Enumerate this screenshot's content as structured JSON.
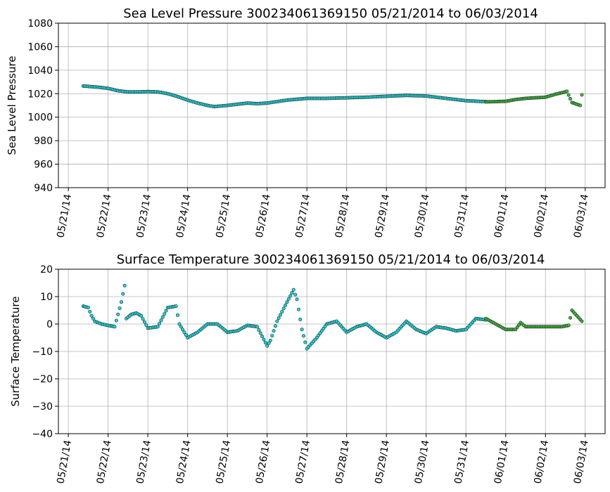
{
  "chart_data": [
    {
      "type": "scatter",
      "title": "Sea Level Pressure 300234061369150  05/21/2014 to 06/03/2014",
      "xlabel": "",
      "ylabel": "Sea Level Pressure",
      "ylim": [
        940,
        1080
      ],
      "yticks": [
        "940",
        "960",
        "980",
        "1000",
        "1020",
        "1040",
        "1060",
        "1080"
      ],
      "xlim": [
        "2014-05-20T18:00",
        "2014-06-03T12:00"
      ],
      "xticks": [
        "05/21/14",
        "05/22/14",
        "05/23/14",
        "05/24/14",
        "05/25/14",
        "05/26/14",
        "05/27/14",
        "05/28/14",
        "05/29/14",
        "05/30/14",
        "05/31/14",
        "06/01/14",
        "06/02/14",
        "06/03/14"
      ],
      "grid": true,
      "colors": {
        "cyan": "#1ed6dc",
        "green": "#3cb83c",
        "edge": "#222222"
      },
      "series": [
        {
          "color": "cyan",
          "x": [
            "2014-05-21T09:00",
            "2014-05-21T18:00",
            "2014-05-22T00:00",
            "2014-05-22T06:00",
            "2014-05-22T12:00",
            "2014-05-22T18:00",
            "2014-05-23T00:00",
            "2014-05-23T06:00",
            "2014-05-23T12:00",
            "2014-05-23T18:00",
            "2014-05-24T00:00",
            "2014-05-24T06:00",
            "2014-05-24T12:00",
            "2014-05-24T16:00",
            "2014-05-25T00:00",
            "2014-05-25T06:00",
            "2014-05-25T12:00",
            "2014-05-25T18:00",
            "2014-05-26T00:00",
            "2014-05-26T12:00",
            "2014-05-27T00:00",
            "2014-05-27T12:00",
            "2014-05-28T00:00",
            "2014-05-28T12:00",
            "2014-05-29T00:00",
            "2014-05-29T12:00",
            "2014-05-30T00:00",
            "2014-05-30T12:00",
            "2014-05-31T00:00",
            "2014-05-31T12:00"
          ],
          "y": [
            1026.5,
            1025.5,
            1024.5,
            1022.5,
            1021.5,
            1021.5,
            1021.8,
            1021.5,
            1020,
            1017.5,
            1014.5,
            1012,
            1010,
            1009,
            1010,
            1011,
            1012,
            1011.5,
            1012,
            1014.5,
            1016,
            1016,
            1016.5,
            1017,
            1017.8,
            1018.5,
            1018,
            1016,
            1014,
            1013.2
          ]
        },
        {
          "color": "green",
          "x": [
            "2014-05-31T12:00",
            "2014-06-01T00:00",
            "2014-06-01T06:00",
            "2014-06-01T12:00",
            "2014-06-01T18:00",
            "2014-06-02T00:00",
            "2014-06-02T06:00",
            "2014-06-02T12:00",
            "2014-06-02T13:00",
            "2014-06-02T16:00",
            "2014-06-02T19:00",
            "2014-06-02T21:00",
            "2014-06-02T22:00"
          ],
          "y": [
            1013,
            1013.5,
            1015,
            1016,
            1016.5,
            1017,
            1019.5,
            1021.5,
            1022,
            1012.5,
            1011,
            1010,
            1019
          ]
        }
      ]
    },
    {
      "type": "scatter",
      "title": "Surface Temperature 300234061369150  05/21/2014 to 06/03/2014",
      "xlabel": "",
      "ylabel": "Surface Temperature",
      "ylim": [
        -40,
        20
      ],
      "yticks": [
        "−40",
        "−30",
        "−20",
        "−10",
        "0",
        "10",
        "20"
      ],
      "xlim": [
        "2014-05-20T18:00",
        "2014-06-03T12:00"
      ],
      "xticks": [
        "05/21/14",
        "05/22/14",
        "05/23/14",
        "05/24/14",
        "05/25/14",
        "05/26/14",
        "05/27/14",
        "05/28/14",
        "05/29/14",
        "05/30/14",
        "05/31/14",
        "06/01/14",
        "06/02/14",
        "06/03/14"
      ],
      "grid": true,
      "colors": {
        "cyan": "#1ed6dc",
        "green": "#3cb83c",
        "edge": "#222222"
      },
      "series": [
        {
          "color": "cyan",
          "x": [
            "2014-05-21T09:00",
            "2014-05-21T12:00",
            "2014-05-21T14:00",
            "2014-05-21T16:00",
            "2014-05-21T20:00",
            "2014-05-22T00:00",
            "2014-05-22T04:00",
            "2014-05-22T08:00",
            "2014-05-22T10:00",
            "2014-05-22T11:00",
            "2014-05-22T14:00",
            "2014-05-22T17:00",
            "2014-05-22T20:00",
            "2014-05-23T00:00",
            "2014-05-23T06:00",
            "2014-05-23T12:00",
            "2014-05-23T17:00",
            "2014-05-23T19:00",
            "2014-05-24T00:00",
            "2014-05-24T06:00",
            "2014-05-24T12:00",
            "2014-05-24T18:00",
            "2014-05-25T00:00",
            "2014-05-25T06:00",
            "2014-05-25T12:00",
            "2014-05-25T18:00",
            "2014-05-26T00:00",
            "2014-05-26T02:00",
            "2014-05-26T06:00",
            "2014-05-26T12:00",
            "2014-05-26T16:00",
            "2014-05-26T18:00",
            "2014-05-26T21:00",
            "2014-05-27T00:00",
            "2014-05-27T06:00",
            "2014-05-27T12:00",
            "2014-05-27T18:00",
            "2014-05-28T00:00",
            "2014-05-28T06:00",
            "2014-05-28T12:00",
            "2014-05-28T18:00",
            "2014-05-29T00:00",
            "2014-05-29T06:00",
            "2014-05-29T12:00",
            "2014-05-29T18:00",
            "2014-05-30T00:00",
            "2014-05-30T06:00",
            "2014-05-30T12:00",
            "2014-05-30T18:00",
            "2014-05-31T00:00",
            "2014-05-31T06:00",
            "2014-05-31T12:00"
          ],
          "y": [
            6.5,
            6,
            3,
            1,
            0,
            -0.5,
            -1,
            8,
            14,
            2,
            3.5,
            4,
            3,
            -1.5,
            -1,
            6,
            6.5,
            0,
            -5,
            -3,
            0,
            0,
            -3,
            -2.5,
            -0.5,
            -1,
            -8,
            -6,
            1,
            8,
            12.5,
            9,
            -2,
            -9,
            -5,
            0,
            1,
            -3,
            -1,
            0,
            -3,
            -5,
            -3,
            1,
            -2,
            -3.5,
            -1,
            -1.5,
            -2.5,
            -2,
            2,
            1.5
          ]
        },
        {
          "color": "green",
          "x": [
            "2014-05-31T12:00",
            "2014-05-31T18:00",
            "2014-06-01T00:00",
            "2014-06-01T06:00",
            "2014-06-01T09:00",
            "2014-06-01T12:00",
            "2014-06-01T18:00",
            "2014-06-02T00:00",
            "2014-06-02T06:00",
            "2014-06-02T10:00",
            "2014-06-02T14:00",
            "2014-06-02T16:00",
            "2014-06-02T19:00",
            "2014-06-02T22:00"
          ],
          "y": [
            2,
            0,
            -2,
            -2,
            0.5,
            -1,
            -1,
            -1,
            -1,
            -1,
            -0.5,
            5,
            3,
            1
          ]
        }
      ]
    }
  ]
}
